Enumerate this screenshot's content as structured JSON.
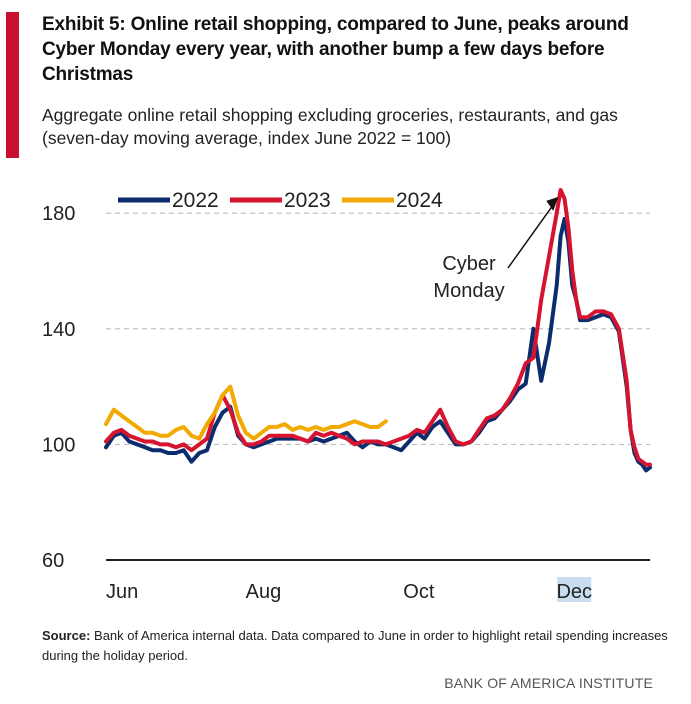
{
  "header": {
    "title": "Exhibit 5: Online retail shopping, compared to June, peaks around Cyber Monday every year, with another bump a few days before Christmas",
    "subtitle": "Aggregate online retail shopping excluding groceries, restaurants, and gas (seven-day moving average, index June 2022 = 100)"
  },
  "footer": {
    "source_label": "Source:",
    "source_text": "Bank of America internal data. Data compared to June in order to highlight retail spending increases during the holiday period.",
    "brand": "BANK OF AMERICA INSTITUTE"
  },
  "colors": {
    "accent": "#c8102e",
    "series_2022": "#0b2d6e",
    "series_2023": "#d6142f",
    "series_2024": "#f2a900"
  },
  "chart_data": {
    "type": "line",
    "title": "",
    "xlabel": "",
    "ylabel": "",
    "x_ticks": [
      {
        "month": 0,
        "label": "Jun"
      },
      {
        "month": 2,
        "label": "Aug"
      },
      {
        "month": 4,
        "label": "Oct"
      },
      {
        "month": 6,
        "label": "Dec"
      }
    ],
    "xlim": [
      0,
      7
    ],
    "y_ticks": [
      60,
      100,
      140,
      180
    ],
    "ylim": [
      60,
      188
    ],
    "grid": "horizontal dashed",
    "legend_position": "top-left",
    "annotation": {
      "text_line1": "Cyber",
      "text_line2": "Monday",
      "points_to_month": 6.0,
      "points_to_value": 187
    },
    "series": [
      {
        "name": "2022",
        "color": "#0b2d6e",
        "x": [
          0,
          0.1,
          0.2,
          0.3,
          0.4,
          0.5,
          0.6,
          0.7,
          0.8,
          0.9,
          1.0,
          1.1,
          1.2,
          1.3,
          1.4,
          1.5,
          1.6,
          1.7,
          1.8,
          1.9,
          2.0,
          2.1,
          2.2,
          2.3,
          2.4,
          2.5,
          2.6,
          2.7,
          2.8,
          2.9,
          3.0,
          3.1,
          3.2,
          3.3,
          3.4,
          3.5,
          3.6,
          3.7,
          3.8,
          3.9,
          4.0,
          4.1,
          4.2,
          4.3,
          4.4,
          4.5,
          4.6,
          4.7,
          4.8,
          4.9,
          5.0,
          5.1,
          5.2,
          5.3,
          5.4,
          5.5,
          5.6,
          5.7,
          5.8,
          5.85,
          5.9,
          5.95,
          6.0,
          6.05,
          6.1,
          6.2,
          6.3,
          6.4,
          6.5,
          6.6,
          6.7,
          6.75,
          6.8,
          6.85,
          6.9,
          6.95,
          7.0
        ],
        "values": [
          99,
          103,
          104,
          101,
          100,
          99,
          98,
          98,
          97,
          97,
          98,
          94,
          97,
          98,
          106,
          111,
          113,
          103,
          100,
          99,
          100,
          101,
          102,
          102,
          102,
          102,
          101,
          102,
          101,
          102,
          103,
          104,
          101,
          99,
          101,
          100,
          100,
          99,
          98,
          101,
          104,
          102,
          106,
          108,
          104,
          100,
          100,
          101,
          104,
          108,
          109,
          112,
          115,
          119,
          121,
          140,
          122,
          135,
          155,
          172,
          178,
          170,
          155,
          150,
          143,
          143,
          144,
          145,
          144,
          139,
          120,
          105,
          97,
          94,
          93,
          91,
          92
        ]
      },
      {
        "name": "2023",
        "color": "#d6142f",
        "x": [
          0,
          0.1,
          0.2,
          0.3,
          0.4,
          0.5,
          0.6,
          0.7,
          0.8,
          0.9,
          1.0,
          1.1,
          1.2,
          1.3,
          1.4,
          1.5,
          1.6,
          1.7,
          1.8,
          1.9,
          2.0,
          2.1,
          2.2,
          2.3,
          2.4,
          2.5,
          2.6,
          2.7,
          2.8,
          2.9,
          3.0,
          3.1,
          3.2,
          3.3,
          3.4,
          3.5,
          3.6,
          3.7,
          3.8,
          3.9,
          4.0,
          4.1,
          4.2,
          4.3,
          4.4,
          4.5,
          4.6,
          4.7,
          4.8,
          4.9,
          5.0,
          5.1,
          5.2,
          5.3,
          5.4,
          5.5,
          5.6,
          5.7,
          5.8,
          5.85,
          5.9,
          5.95,
          6.0,
          6.05,
          6.1,
          6.2,
          6.3,
          6.4,
          6.5,
          6.6,
          6.7,
          6.75,
          6.8,
          6.85,
          6.9,
          6.95,
          7.0
        ],
        "values": [
          101,
          104,
          105,
          103,
          102,
          101,
          101,
          100,
          100,
          99,
          100,
          98,
          100,
          102,
          111,
          117,
          112,
          104,
          100,
          100,
          101,
          103,
          103,
          103,
          103,
          102,
          101,
          104,
          103,
          104,
          103,
          102,
          100,
          101,
          101,
          101,
          100,
          101,
          102,
          103,
          105,
          104,
          108,
          112,
          106,
          101,
          100,
          101,
          105,
          109,
          110,
          112,
          116,
          121,
          128,
          130,
          150,
          165,
          180,
          188,
          185,
          175,
          160,
          150,
          144,
          144,
          146,
          146,
          145,
          140,
          122,
          105,
          99,
          95,
          94,
          93,
          93
        ]
      },
      {
        "name": "2024",
        "color": "#f2a900",
        "x": [
          0,
          0.1,
          0.2,
          0.3,
          0.4,
          0.5,
          0.6,
          0.7,
          0.8,
          0.9,
          1.0,
          1.1,
          1.2,
          1.3,
          1.4,
          1.5,
          1.6,
          1.7,
          1.8,
          1.9,
          2.0,
          2.1,
          2.2,
          2.3,
          2.4,
          2.5,
          2.6,
          2.7,
          2.8,
          2.9,
          3.0,
          3.1,
          3.2,
          3.3,
          3.4,
          3.5,
          3.6
        ],
        "values": [
          107,
          112,
          110,
          108,
          106,
          104,
          104,
          103,
          103,
          105,
          106,
          103,
          102,
          107,
          111,
          117,
          120,
          110,
          104,
          102,
          104,
          106,
          106,
          107,
          105,
          106,
          105,
          106,
          105,
          106,
          106,
          107,
          108,
          107,
          106,
          106,
          108
        ]
      }
    ]
  }
}
